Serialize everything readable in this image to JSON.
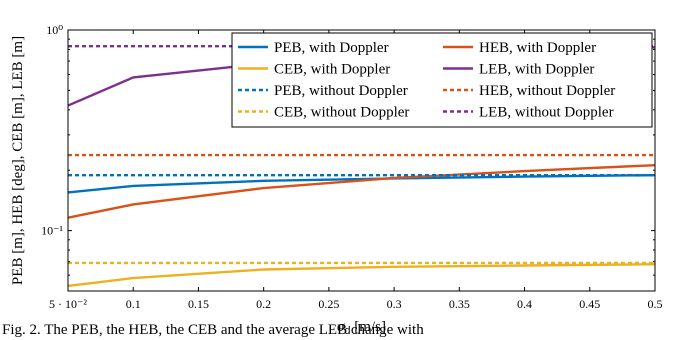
{
  "chart_data": {
    "type": "line",
    "xlabel": "σ_d [m/s]",
    "ylabel": "PEB [m], HEB [deg], CEB [m], LEB [m]",
    "xlim": [
      0.05,
      0.5
    ],
    "ylim": [
      0.05,
      1.0
    ],
    "yscale": "log",
    "grid": false,
    "legend_position": "top-right",
    "x_ticks": [
      {
        "value": 0.05,
        "label": "5 · 10⁻²"
      },
      {
        "value": 0.1,
        "label": "0.1"
      },
      {
        "value": 0.15,
        "label": "0.15"
      },
      {
        "value": 0.2,
        "label": "0.2"
      },
      {
        "value": 0.25,
        "label": "0.25"
      },
      {
        "value": 0.3,
        "label": "0.3"
      },
      {
        "value": 0.35,
        "label": "0.35"
      },
      {
        "value": 0.4,
        "label": "0.4"
      },
      {
        "value": 0.45,
        "label": "0.45"
      },
      {
        "value": 0.5,
        "label": "0.5"
      }
    ],
    "y_ticks": [
      {
        "value": 0.1,
        "label": "10⁻¹"
      },
      {
        "value": 1.0,
        "label": "10⁰"
      }
    ],
    "series": [
      {
        "name": "PEB, with Doppler",
        "color": "#0072BD",
        "dash": "solid",
        "x": [
          0.05,
          0.1,
          0.2,
          0.3,
          0.4,
          0.5
        ],
        "y": [
          0.155,
          0.167,
          0.177,
          0.182,
          0.186,
          0.189
        ]
      },
      {
        "name": "HEB, with Doppler",
        "color": "#D95319",
        "dash": "solid",
        "x": [
          0.05,
          0.1,
          0.2,
          0.3,
          0.4,
          0.5
        ],
        "y": [
          0.116,
          0.135,
          0.163,
          0.183,
          0.198,
          0.212
        ]
      },
      {
        "name": "CEB, with Doppler",
        "color": "#EDB120",
        "dash": "solid",
        "x": [
          0.05,
          0.1,
          0.2,
          0.3,
          0.4,
          0.5
        ],
        "y": [
          0.053,
          0.058,
          0.064,
          0.066,
          0.067,
          0.068
        ]
      },
      {
        "name": "LEB, with Doppler",
        "color": "#7E2F8E",
        "dash": "solid",
        "x": [
          0.05,
          0.1,
          0.2,
          0.3,
          0.4,
          0.5
        ],
        "y": [
          0.42,
          0.58,
          0.68,
          0.74,
          0.78,
          0.82
        ]
      },
      {
        "name": "PEB, without Doppler",
        "color": "#0072BD",
        "dash": "dotted",
        "x": [
          0.05,
          0.5
        ],
        "y": [
          0.189,
          0.189
        ]
      },
      {
        "name": "HEB, without Doppler",
        "color": "#D95319",
        "dash": "dotted",
        "x": [
          0.05,
          0.5
        ],
        "y": [
          0.238,
          0.238
        ]
      },
      {
        "name": "CEB, without Doppler",
        "color": "#EDB120",
        "dash": "dotted",
        "x": [
          0.05,
          0.5
        ],
        "y": [
          0.069,
          0.069
        ]
      },
      {
        "name": "LEB, without Doppler",
        "color": "#7E2F8E",
        "dash": "dotted",
        "x": [
          0.05,
          0.5
        ],
        "y": [
          0.83,
          0.83
        ]
      }
    ]
  },
  "caption": "Fig. 2.  The PEB, the HEB, the CEB and the average LEB change with"
}
